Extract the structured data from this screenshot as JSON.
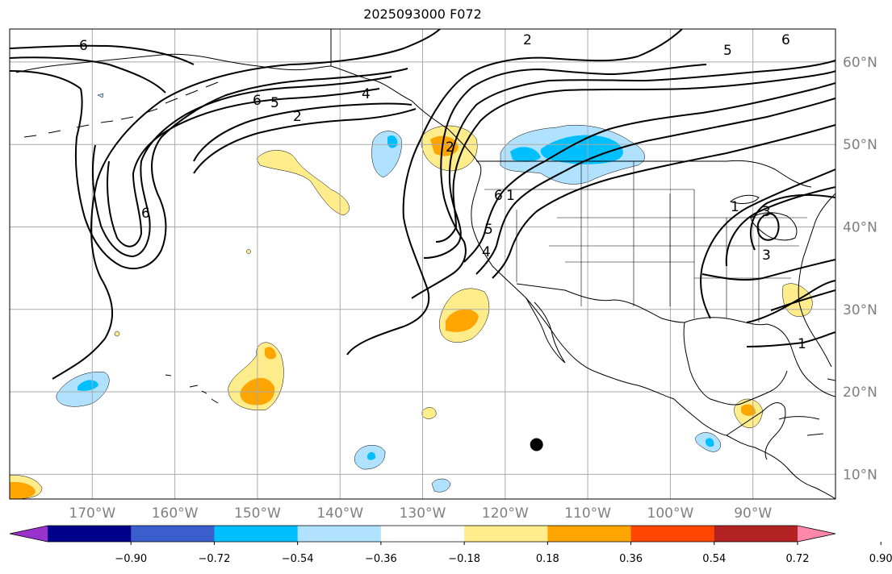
{
  "title": "2025093000 F072",
  "map": {
    "projection": "PlateCarree",
    "lon_range": [
      -180,
      -80
    ],
    "lat_range": [
      7,
      64
    ],
    "lat_ticks": [
      {
        "value": 10,
        "label": "10°N"
      },
      {
        "value": 20,
        "label": "20°N"
      },
      {
        "value": 30,
        "label": "30°N"
      },
      {
        "value": 40,
        "label": "40°N"
      },
      {
        "value": 50,
        "label": "50°N"
      },
      {
        "value": 60,
        "label": "60°N"
      }
    ],
    "lon_ticks": [
      {
        "value": -170,
        "label": "170°W"
      },
      {
        "value": -160,
        "label": "160°W"
      },
      {
        "value": -150,
        "label": "150°W"
      },
      {
        "value": -140,
        "label": "140°W"
      },
      {
        "value": -130,
        "label": "130°W"
      },
      {
        "value": -120,
        "label": "120°W"
      },
      {
        "value": -110,
        "label": "110°W"
      },
      {
        "value": -100,
        "label": "100°W"
      },
      {
        "value": -90,
        "label": "90°W"
      }
    ],
    "gridlines": true,
    "marker": {
      "lon": -116.2,
      "lat": 13.6,
      "color": "#000000"
    },
    "contour_labels": [
      "6",
      "6",
      "2",
      "5",
      "6",
      "2",
      "4",
      "6",
      "1",
      "5",
      "4",
      "2",
      "5",
      "6",
      "1",
      "3",
      "3",
      "1"
    ]
  },
  "colorbar": {
    "colors": [
      "#9932cc",
      "#00008b",
      "#3a5fcd",
      "#00bfff",
      "#b0e2ff",
      "#ffffff",
      "#ffec8b",
      "#ffa500",
      "#ff4500",
      "#b22222",
      "#ff88aa"
    ],
    "extend": "both",
    "ticks": [
      "−0.90",
      "−0.72",
      "−0.54",
      "−0.36",
      "−0.18",
      "0.18",
      "0.36",
      "0.54",
      "0.72",
      "0.90"
    ]
  }
}
